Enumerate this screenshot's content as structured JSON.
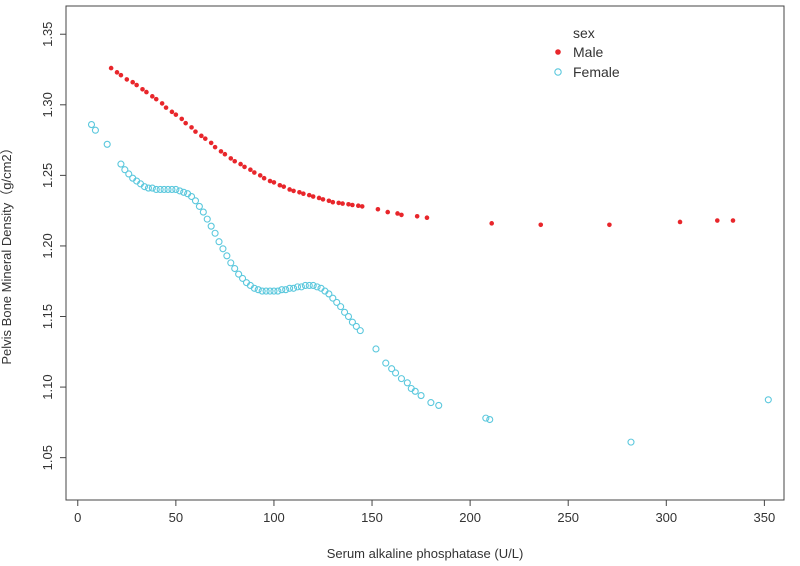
{
  "chart_data": {
    "type": "scatter",
    "title": "",
    "xlabel": "Serum alkaline phosphatase (U/L)",
    "ylabel": "Pelvis Bone Mineral Density（g/cm2）",
    "xlim": [
      -6,
      360
    ],
    "ylim": [
      1.02,
      1.37
    ],
    "xticks": [
      0,
      50,
      100,
      150,
      200,
      250,
      300,
      350
    ],
    "yticks": [
      1.05,
      1.1,
      1.15,
      1.2,
      1.25,
      1.3,
      1.35
    ],
    "xtick_labels": [
      "0",
      "50",
      "100",
      "150",
      "200",
      "250",
      "300",
      "350"
    ],
    "ytick_labels": [
      "1.05",
      "1.10",
      "1.15",
      "1.20",
      "1.25",
      "1.30",
      "1.35"
    ],
    "legend": {
      "title": "sex",
      "position": "top-right"
    },
    "series": [
      {
        "name": "Male",
        "color": "#e8262b",
        "marker": "filled-circle",
        "x": [
          17,
          20,
          22,
          25,
          28,
          30,
          33,
          35,
          38,
          40,
          43,
          45,
          48,
          50,
          53,
          55,
          58,
          60,
          63,
          65,
          68,
          70,
          73,
          75,
          78,
          80,
          83,
          85,
          88,
          90,
          93,
          95,
          98,
          100,
          103,
          105,
          108,
          110,
          113,
          115,
          118,
          120,
          123,
          125,
          128,
          130,
          133,
          135,
          138,
          140,
          143,
          145,
          153,
          158,
          163,
          165,
          173,
          178,
          211,
          236,
          271,
          307,
          326,
          334
        ],
        "y": [
          1.326,
          1.323,
          1.321,
          1.318,
          1.316,
          1.314,
          1.311,
          1.309,
          1.306,
          1.304,
          1.301,
          1.298,
          1.295,
          1.293,
          1.29,
          1.287,
          1.284,
          1.281,
          1.278,
          1.276,
          1.273,
          1.27,
          1.267,
          1.265,
          1.262,
          1.26,
          1.258,
          1.256,
          1.254,
          1.252,
          1.25,
          1.248,
          1.246,
          1.245,
          1.243,
          1.242,
          1.24,
          1.239,
          1.238,
          1.237,
          1.236,
          1.235,
          1.234,
          1.233,
          1.232,
          1.231,
          1.2305,
          1.23,
          1.2295,
          1.229,
          1.2285,
          1.228,
          1.226,
          1.224,
          1.223,
          1.222,
          1.221,
          1.22,
          1.216,
          1.215,
          1.215,
          1.217,
          1.218,
          1.218
        ]
      },
      {
        "name": "Female",
        "color": "#5bc8dd",
        "marker": "open-circle",
        "x": [
          7,
          9,
          15,
          22,
          24,
          26,
          28,
          30,
          32,
          34,
          36,
          38,
          40,
          42,
          44,
          46,
          48,
          50,
          52,
          54,
          56,
          58,
          60,
          62,
          64,
          66,
          68,
          70,
          72,
          74,
          76,
          78,
          80,
          82,
          84,
          86,
          88,
          90,
          92,
          94,
          96,
          98,
          100,
          102,
          104,
          106,
          108,
          110,
          112,
          114,
          116,
          118,
          120,
          122,
          124,
          126,
          128,
          130,
          132,
          134,
          136,
          138,
          140,
          142,
          144,
          152,
          157,
          160,
          162,
          165,
          168,
          170,
          172,
          175,
          180,
          184,
          208,
          210,
          282,
          352
        ],
        "y": [
          1.286,
          1.282,
          1.272,
          1.258,
          1.254,
          1.251,
          1.248,
          1.246,
          1.244,
          1.242,
          1.241,
          1.241,
          1.24,
          1.24,
          1.24,
          1.24,
          1.24,
          1.24,
          1.239,
          1.238,
          1.237,
          1.235,
          1.232,
          1.228,
          1.224,
          1.219,
          1.214,
          1.209,
          1.203,
          1.198,
          1.193,
          1.188,
          1.184,
          1.18,
          1.177,
          1.174,
          1.172,
          1.17,
          1.169,
          1.168,
          1.168,
          1.168,
          1.168,
          1.168,
          1.169,
          1.169,
          1.17,
          1.17,
          1.171,
          1.171,
          1.172,
          1.172,
          1.172,
          1.171,
          1.17,
          1.168,
          1.166,
          1.163,
          1.16,
          1.157,
          1.153,
          1.15,
          1.146,
          1.143,
          1.14,
          1.127,
          1.117,
          1.113,
          1.11,
          1.106,
          1.103,
          1.099,
          1.097,
          1.094,
          1.089,
          1.087,
          1.078,
          1.077,
          1.061,
          1.091
        ]
      }
    ]
  }
}
